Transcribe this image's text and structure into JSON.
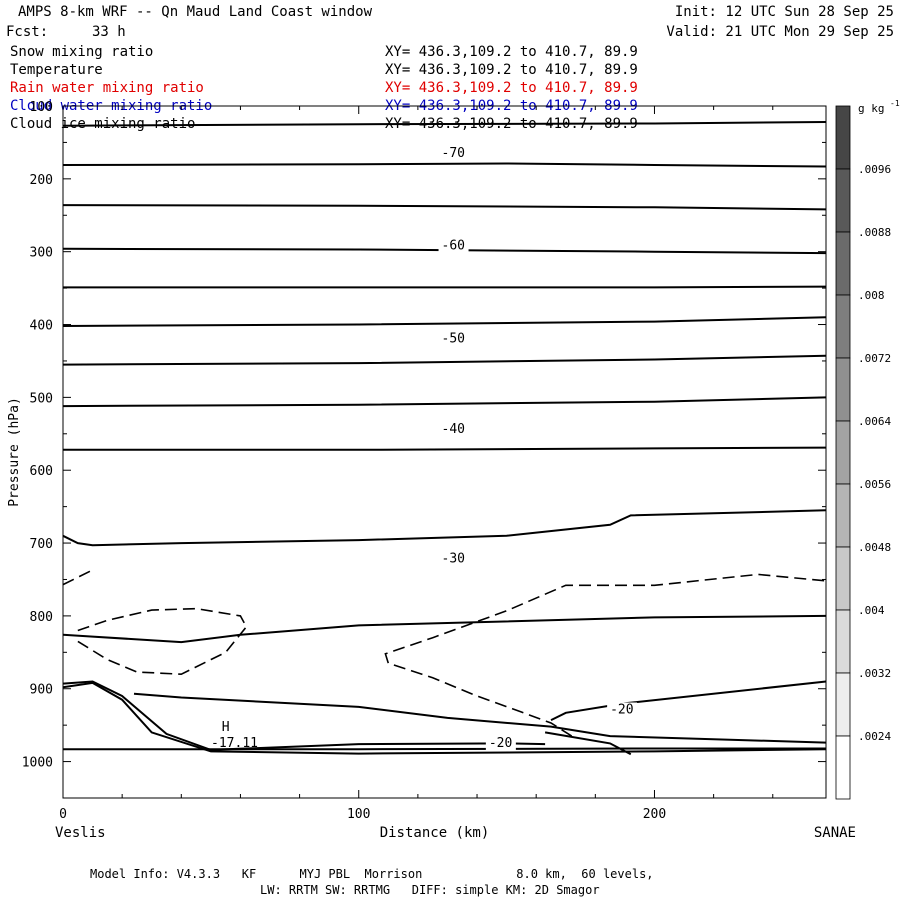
{
  "header": {
    "title": "AMPS 8-km WRF -- Qn Maud Land Coast window",
    "fcst_label": "Fcst:",
    "fcst_value": "33 h",
    "init": "Init: 12 UTC Sun 28 Sep 25",
    "valid": "Valid: 21 UTC Mon 29 Sep 25"
  },
  "fields": [
    {
      "name": "Snow mixing ratio",
      "xy": "XY= 436.3,109.2 to 410.7, 89.9",
      "color": "#000000"
    },
    {
      "name": "Temperature",
      "xy": "XY= 436.3,109.2 to 410.7, 89.9",
      "color": "#000000"
    },
    {
      "name": "Rain water mixing ratio",
      "xy": "XY= 436.3,109.2 to 410.7, 89.9",
      "color": "#e00000"
    },
    {
      "name": "Cloud water mixing ratio",
      "xy": "XY= 436.3,109.2 to 410.7, 89.9",
      "color": "#0000c0"
    },
    {
      "name": "Cloud ice mixing ratio",
      "xy": "XY= 436.3,109.2 to 410.7, 89.9",
      "color": "#000000"
    }
  ],
  "footer": {
    "line1": "Model Info: V4.3.3   KF      MYJ PBL  Morrison             8.0 km,  60 levels,",
    "line2": "LW: RRTM SW: RRTMG   DIFF: simple KM: 2D Smagor"
  },
  "chart_data": {
    "type": "contour",
    "ylabel": "Pressure (hPa)",
    "xlabel": "Distance (km)",
    "xlim": [
      0,
      258
    ],
    "ylim": [
      1050,
      100
    ],
    "x_ticks": [
      0,
      100,
      200
    ],
    "y_ticks": [
      100,
      200,
      300,
      400,
      500,
      600,
      700,
      800,
      900,
      1000
    ],
    "left_endpoint": "Veslis",
    "right_endpoint": "SANAE",
    "colorbar": {
      "unit": "g kg",
      "unit_exp": "-1",
      "labels": [
        ".0096",
        ".0088",
        ".008",
        ".0072",
        ".0064",
        ".0056",
        ".0048",
        ".004",
        ".0032",
        ".0024"
      ]
    },
    "isotherm_labels": [
      {
        "text": "-70",
        "x": 128,
        "p": 170
      },
      {
        "text": "-60",
        "x": 128,
        "p": 297
      },
      {
        "text": "-50",
        "x": 128,
        "p": 425
      },
      {
        "text": "-40",
        "x": 128,
        "p": 549
      },
      {
        "text": "-30",
        "x": 128,
        "p": 727
      },
      {
        "text": "-20",
        "x": 185,
        "p": 934
      },
      {
        "text": "-20",
        "x": 144,
        "p": 980
      }
    ],
    "annotations": [
      {
        "text": "H",
        "x": 55,
        "p": 958
      },
      {
        "text": "-17.11",
        "x": 58,
        "p": 980
      }
    ],
    "isotherms": [
      {
        "x": [
          0,
          100,
          200,
          258
        ],
        "p": [
          127,
          125,
          124,
          122
        ]
      },
      {
        "x": [
          0,
          100,
          150,
          200,
          258
        ],
        "p": [
          181,
          180,
          179,
          181,
          183
        ]
      },
      {
        "x": [
          0,
          100,
          200,
          258
        ],
        "p": [
          236,
          237,
          239,
          242
        ]
      },
      {
        "x": [
          0,
          100,
          200,
          258
        ],
        "p": [
          296,
          297,
          300,
          302
        ]
      },
      {
        "x": [
          0,
          100,
          200,
          258
        ],
        "p": [
          349,
          349,
          349,
          348
        ]
      },
      {
        "x": [
          0,
          100,
          200,
          258
        ],
        "p": [
          402,
          400,
          396,
          390
        ]
      },
      {
        "x": [
          0,
          100,
          200,
          258
        ],
        "p": [
          455,
          453,
          448,
          443
        ]
      },
      {
        "x": [
          0,
          100,
          200,
          258
        ],
        "p": [
          512,
          510,
          506,
          500
        ]
      },
      {
        "x": [
          0,
          100,
          200,
          258
        ],
        "p": [
          572,
          572,
          570,
          569
        ]
      },
      {
        "x": [
          0,
          5,
          10,
          40,
          100,
          150,
          185,
          192,
          230,
          258
        ],
        "p": [
          690,
          700,
          703,
          700,
          696,
          690,
          675,
          662,
          658,
          655
        ]
      },
      {
        "x": [
          0,
          40,
          60,
          100,
          200,
          258
        ],
        "p": [
          826,
          836,
          826,
          813,
          802,
          800
        ]
      },
      {
        "x": [
          24,
          40,
          100,
          130,
          165,
          185,
          258
        ],
        "p": [
          907,
          912,
          925,
          940,
          952,
          965,
          974
        ]
      },
      {
        "x": [
          0,
          10,
          20,
          35,
          50,
          100,
          150,
          163
        ],
        "p": [
          893,
          890,
          910,
          962,
          984,
          976,
          975,
          976
        ]
      },
      {
        "x": [
          0,
          10,
          20,
          30,
          50,
          100,
          200,
          258
        ],
        "p": [
          898,
          892,
          915,
          960,
          986,
          989,
          986,
          983
        ]
      },
      {
        "x": [
          0,
          100,
          200,
          258
        ],
        "p": [
          983,
          983,
          982,
          982
        ]
      },
      {
        "x": [
          165,
          170,
          190,
          258
        ],
        "p": [
          943,
          933,
          920,
          890
        ]
      },
      {
        "x": [
          163,
          185,
          192
        ],
        "p": [
          960,
          975,
          990
        ]
      }
    ],
    "dashed_contours": [
      {
        "x": [
          0,
          10
        ],
        "p": [
          757,
          737
        ]
      },
      {
        "x": [
          5,
          15,
          30,
          45,
          60,
          62,
          55,
          40,
          25,
          15,
          5
        ],
        "p": [
          820,
          806,
          792,
          790,
          800,
          815,
          850,
          880,
          877,
          860,
          835
        ]
      },
      {
        "x": [
          172,
          165,
          155,
          140,
          125,
          110,
          109,
          125,
          150,
          170,
          200,
          235,
          258
        ],
        "p": [
          965,
          947,
          932,
          910,
          885,
          865,
          852,
          830,
          793,
          758,
          758,
          743,
          752
        ]
      }
    ]
  }
}
